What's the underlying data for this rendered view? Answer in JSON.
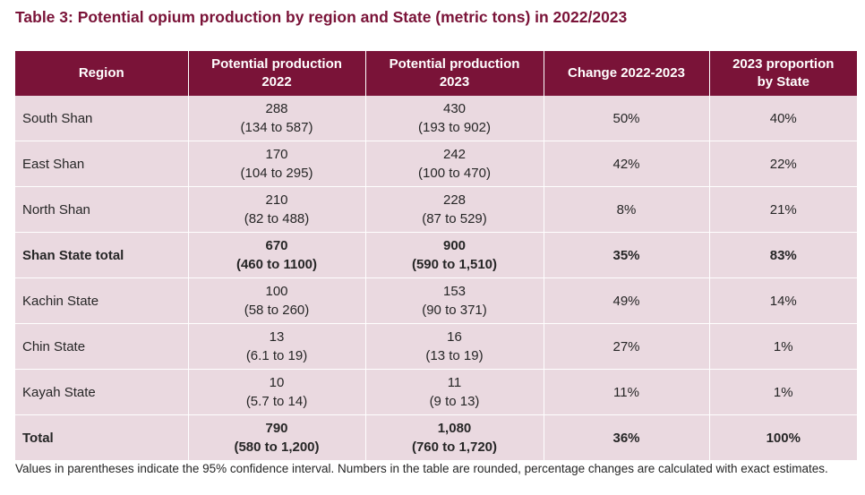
{
  "title": "Table 3: Potential opium production by region and State (metric tons) in 2022/2023",
  "headers": {
    "region": "Region",
    "prod2022_l1": "Potential production",
    "prod2022_l2": "2022",
    "prod2023_l1": "Potential production",
    "prod2023_l2": "2023",
    "change": "Change 2022-2023",
    "proportion_l1": "2023 proportion",
    "proportion_l2": "by State"
  },
  "rows": [
    {
      "region": "South Shan",
      "p2022": "288",
      "p2022_ci": "(134 to 587)",
      "p2023": "430",
      "p2023_ci": "(193 to 902)",
      "change": "50%",
      "proportion": "40%",
      "bold": false
    },
    {
      "region": "East Shan",
      "p2022": "170",
      "p2022_ci": "(104 to 295)",
      "p2023": "242",
      "p2023_ci": "(100 to 470)",
      "change": "42%",
      "proportion": "22%",
      "bold": false
    },
    {
      "region": "North Shan",
      "p2022": "210",
      "p2022_ci": "(82 to 488)",
      "p2023": "228",
      "p2023_ci": "(87 to 529)",
      "change": "8%",
      "proportion": "21%",
      "bold": false
    },
    {
      "region": "Shan State total",
      "p2022": "670",
      "p2022_ci": "(460 to 1100)",
      "p2023": "900",
      "p2023_ci": "(590 to 1,510)",
      "change": "35%",
      "proportion": "83%",
      "bold": true
    },
    {
      "region": "Kachin State",
      "p2022": "100",
      "p2022_ci": "(58 to 260)",
      "p2023": "153",
      "p2023_ci": "(90 to 371)",
      "change": "49%",
      "proportion": "14%",
      "bold": false
    },
    {
      "region": "Chin State",
      "p2022": "13",
      "p2022_ci": "(6.1 to 19)",
      "p2023": "16",
      "p2023_ci": "(13 to 19)",
      "change": "27%",
      "proportion": "1%",
      "bold": false
    },
    {
      "region": "Kayah State",
      "p2022": "10",
      "p2022_ci": "(5.7 to 14)",
      "p2023": "11",
      "p2023_ci": "(9 to 13)",
      "change": "11%",
      "proportion": "1%",
      "bold": false
    },
    {
      "region": "Total",
      "p2022": "790",
      "p2022_ci": "(580 to 1,200)",
      "p2023": "1,080",
      "p2023_ci": "(760 to 1,720)",
      "change": "36%",
      "proportion": "100%",
      "bold": true
    }
  ],
  "footnote": "Values in parentheses indicate the 95% confidence interval. Numbers in the table are rounded, percentage changes are calculated with exact estimates.",
  "colors": {
    "header_bg": "#7a1338",
    "row_bg": "#ead9e0",
    "title_color": "#7a1338"
  }
}
